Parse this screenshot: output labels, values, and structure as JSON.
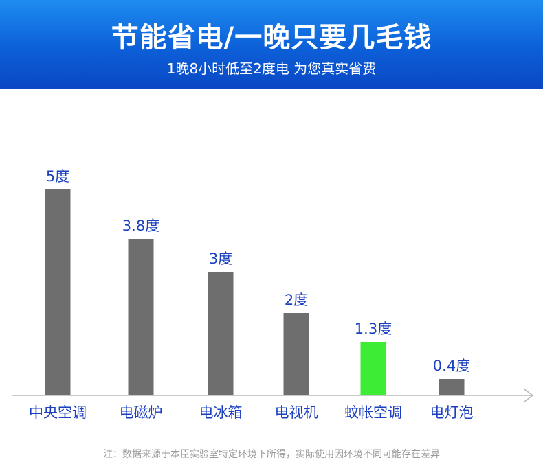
{
  "header": {
    "title": "节能省电/一晚只要几毛钱",
    "subtitle": "1晚8小时低至2度电 为您真实省费"
  },
  "footnote": "注：数据来源于本臣实验室特定环境下所得，实际使用因环境不同可能存在差异",
  "colors": {
    "header_top": "#1e8cf0",
    "header_bottom": "#0a47c4",
    "bar_default": "#6e6e6e",
    "bar_highlight": "#3cec35",
    "label_blue": "#1a3fbf",
    "axis": "#b8b8b8"
  },
  "chart_data": {
    "type": "bar",
    "categories": [
      "中央空调",
      "电磁炉",
      "电冰箱",
      "电视机",
      "蚊帐空调",
      "电灯泡"
    ],
    "values": [
      5,
      3.8,
      3,
      2,
      1.3,
      0.4
    ],
    "value_labels": [
      "5度",
      "3.8度",
      "3度",
      "2度",
      "1.3度",
      "0.4度"
    ],
    "highlight_index": 4,
    "ylim": [
      0,
      5.5
    ],
    "grid": false,
    "legend": "none"
  }
}
